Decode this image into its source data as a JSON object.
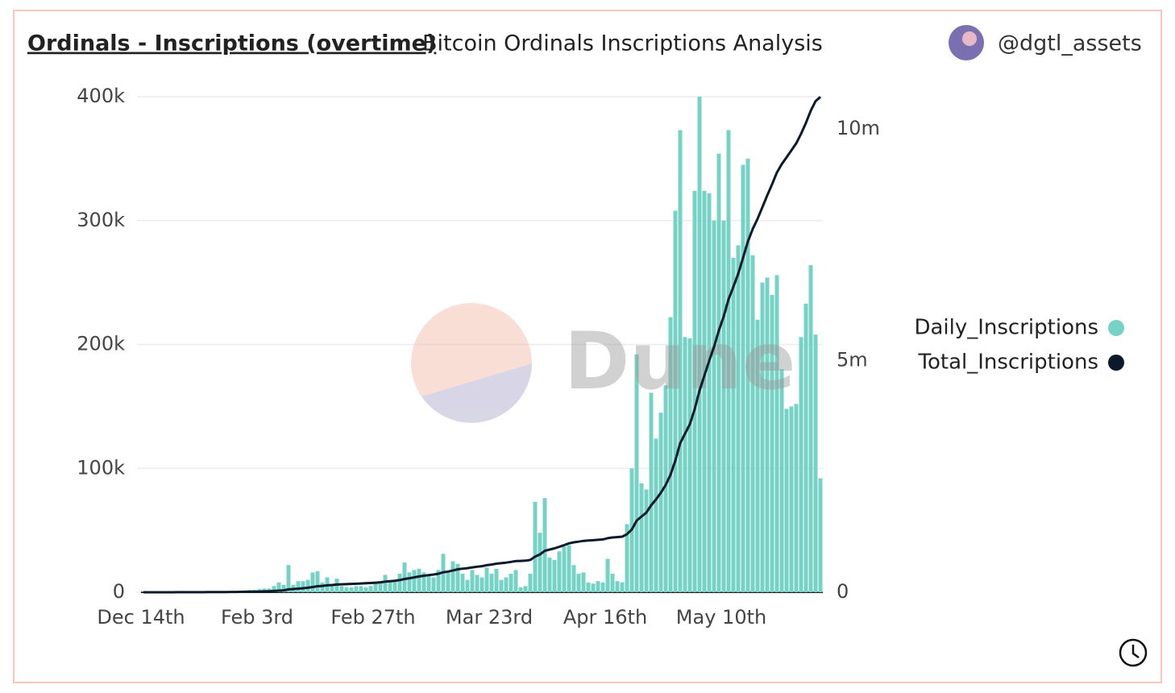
{
  "chart_data": {
    "type": "bar",
    "title": "Ordinals - Inscriptions (overtime)",
    "subtitle": "Bitcoin Ordinals Inscriptions Analysis",
    "author": "@dgtl_assets",
    "watermark": "Dune",
    "categories": [
      "Dec 14th",
      null,
      null,
      null,
      null,
      null,
      null,
      null,
      null,
      null,
      null,
      null,
      null,
      null,
      null,
      null,
      null,
      null,
      null,
      null,
      null,
      null,
      null,
      null,
      "Feb 3rd",
      null,
      null,
      null,
      null,
      null,
      null,
      null,
      null,
      null,
      null,
      null,
      null,
      null,
      null,
      null,
      null,
      null,
      null,
      null,
      null,
      null,
      null,
      null,
      "Feb 27th",
      null,
      null,
      null,
      null,
      null,
      null,
      null,
      null,
      null,
      null,
      null,
      null,
      null,
      null,
      null,
      null,
      null,
      null,
      null,
      null,
      null,
      null,
      null,
      "Mar 23rd",
      null,
      null,
      null,
      null,
      null,
      null,
      null,
      null,
      null,
      null,
      null,
      null,
      null,
      null,
      null,
      null,
      null,
      null,
      null,
      null,
      null,
      null,
      null,
      "Apr 16th",
      null,
      null,
      null,
      null,
      null,
      null,
      null,
      null,
      null,
      null,
      null,
      null,
      null,
      null,
      null,
      null,
      null,
      null,
      null,
      null,
      null,
      null,
      null,
      "May 10th",
      null,
      null,
      null,
      null,
      null,
      null,
      null,
      null,
      null,
      null,
      null,
      null,
      null,
      null,
      null,
      null,
      null,
      null,
      null,
      null
    ],
    "series": [
      {
        "name": "Daily_Inscriptions",
        "type": "bar",
        "color": "#76d2c5",
        "values": [
          200,
          100,
          50,
          80,
          100,
          150,
          120,
          90,
          200,
          300,
          250,
          400,
          300,
          500,
          600,
          400,
          700,
          800,
          900,
          1000,
          1200,
          1500,
          1800,
          2000,
          2500,
          3000,
          3000,
          5000,
          8000,
          6000,
          22000,
          6000,
          9000,
          9000,
          10000,
          16000,
          17000,
          8000,
          12000,
          6000,
          11000,
          5000,
          4000,
          4000,
          5000,
          5000,
          4000,
          5000,
          8000,
          9000,
          14000,
          9000,
          9000,
          15000,
          24000,
          16000,
          18000,
          19000,
          16000,
          14000,
          12000,
          18000,
          31000,
          16000,
          25000,
          23000,
          15000,
          10000,
          18000,
          14000,
          12000,
          20000,
          15000,
          19000,
          10000,
          12000,
          15000,
          18000,
          4000,
          5000,
          15000,
          73000,
          48000,
          76000,
          28000,
          26000,
          33000,
          37000,
          38000,
          22000,
          15000,
          16000,
          8000,
          7000,
          9000,
          8000,
          27000,
          15000,
          9000,
          8000,
          55000,
          100000,
          192000,
          88000,
          83000,
          161000,
          124000,
          145000,
          167000,
          222000,
          308000,
          373000,
          206000,
          205000,
          324000,
          400000,
          324000,
          322000,
          300000,
          354000,
          300000,
          373000,
          270000,
          280000,
          345000,
          350000,
          272000,
          220000,
          250000,
          254000,
          240000,
          256000,
          180000,
          148000,
          150000,
          152000,
          206000,
          233000,
          264000,
          208000,
          92000
        ]
      },
      {
        "name": "Total_Inscriptions",
        "type": "line",
        "axis": "y2",
        "color": "#0b1a2b",
        "values": [
          200,
          300,
          350,
          430,
          530,
          680,
          800,
          890,
          1090,
          1390,
          1640,
          2040,
          2340,
          2840,
          3440,
          3840,
          4540,
          5340,
          6240,
          7240,
          8440,
          9940,
          11740,
          13740,
          16240,
          19240,
          22240,
          27240,
          35240,
          41240,
          63240,
          69240,
          78240,
          87240,
          97240,
          113240,
          130240,
          138240,
          150240,
          156240,
          167240,
          172240,
          176240,
          180240,
          185240,
          190240,
          194240,
          199240,
          207240,
          216240,
          230240,
          239240,
          248240,
          263240,
          287240,
          303240,
          321240,
          340240,
          356240,
          370240,
          382240,
          400240,
          431240,
          447240,
          472240,
          495240,
          510240,
          520240,
          538240,
          552240,
          564240,
          584240,
          599240,
          618240,
          628240,
          640240,
          655240,
          673240,
          677240,
          682240,
          697240,
          770240,
          818240,
          894240,
          922240,
          948240,
          981240,
          1018240,
          1056240,
          1078240,
          1093240,
          1109240,
          1117240,
          1124240,
          1133240,
          1141240,
          1168240,
          1183240,
          1192240,
          1200240,
          1255240,
          1355240,
          1547240,
          1635240,
          1718240,
          1879240,
          2003240,
          2148240,
          2315240,
          2537240,
          2845240,
          3218240,
          3424240,
          3629240,
          3953240,
          4353240,
          4677240,
          4999240,
          5299240,
          5653240,
          5953240,
          6326240,
          6596240,
          6876240,
          7221240,
          7571240,
          7843240,
          8063240,
          8313240,
          8567240,
          8807240,
          9063240,
          9243240,
          9391240,
          9541240,
          9693240,
          9899240,
          10132240,
          10396240,
          10604240,
          10696240
        ]
      }
    ],
    "ylim": [
      0,
      400000
    ],
    "yticks": [
      0,
      {
        "value": 100000,
        "label": "100k"
      },
      {
        "value": 200000,
        "label": "200k"
      },
      {
        "value": 300000,
        "label": "300k"
      },
      {
        "value": 400000,
        "label": "400k"
      }
    ],
    "y2lim": [
      0,
      10700000
    ],
    "y2ticks": [
      0,
      {
        "value": 5000000,
        "label": "5m"
      },
      {
        "value": 10000000,
        "label": "10m"
      }
    ],
    "grid": true,
    "legend": "right"
  }
}
